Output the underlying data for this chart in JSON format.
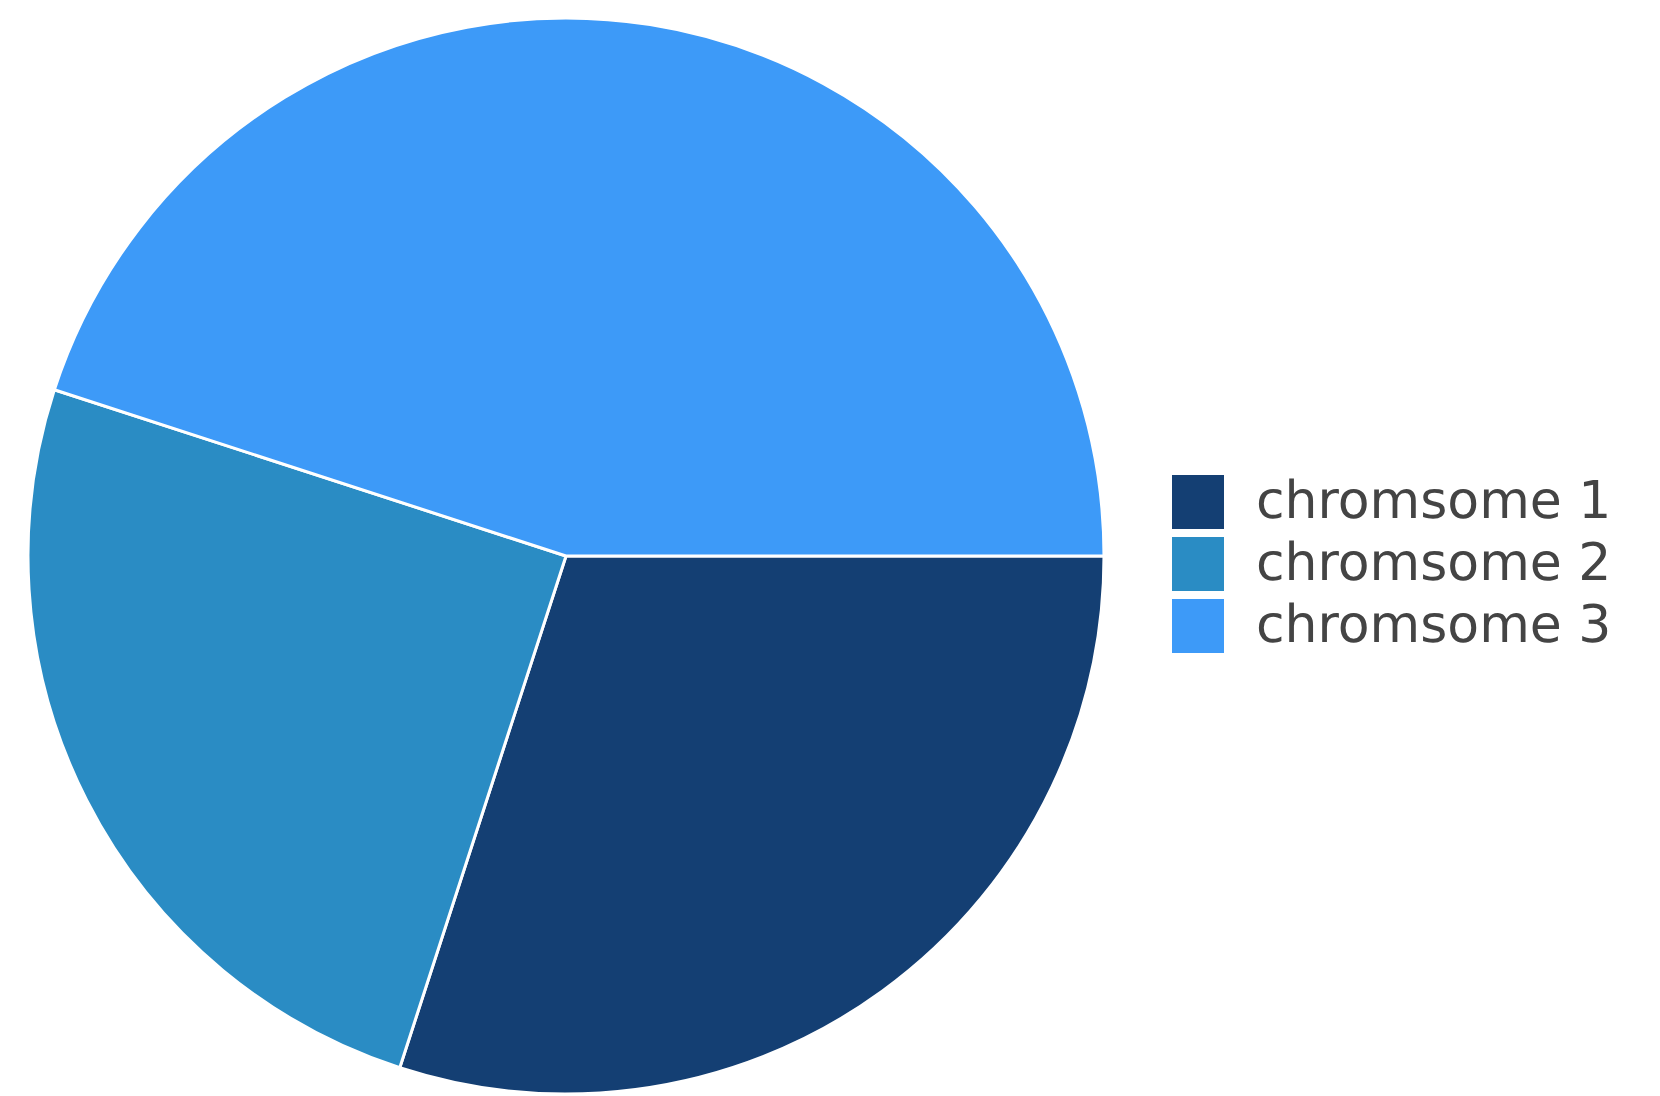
{
  "chart_data": {
    "type": "pie",
    "categories": [
      "chromsome 1",
      "chromsome 2",
      "chromsome 3"
    ],
    "values": [
      30,
      25,
      45
    ],
    "colors": [
      "#143f73",
      "#2a8cc4",
      "#3d9af8"
    ],
    "legend": "right"
  }
}
